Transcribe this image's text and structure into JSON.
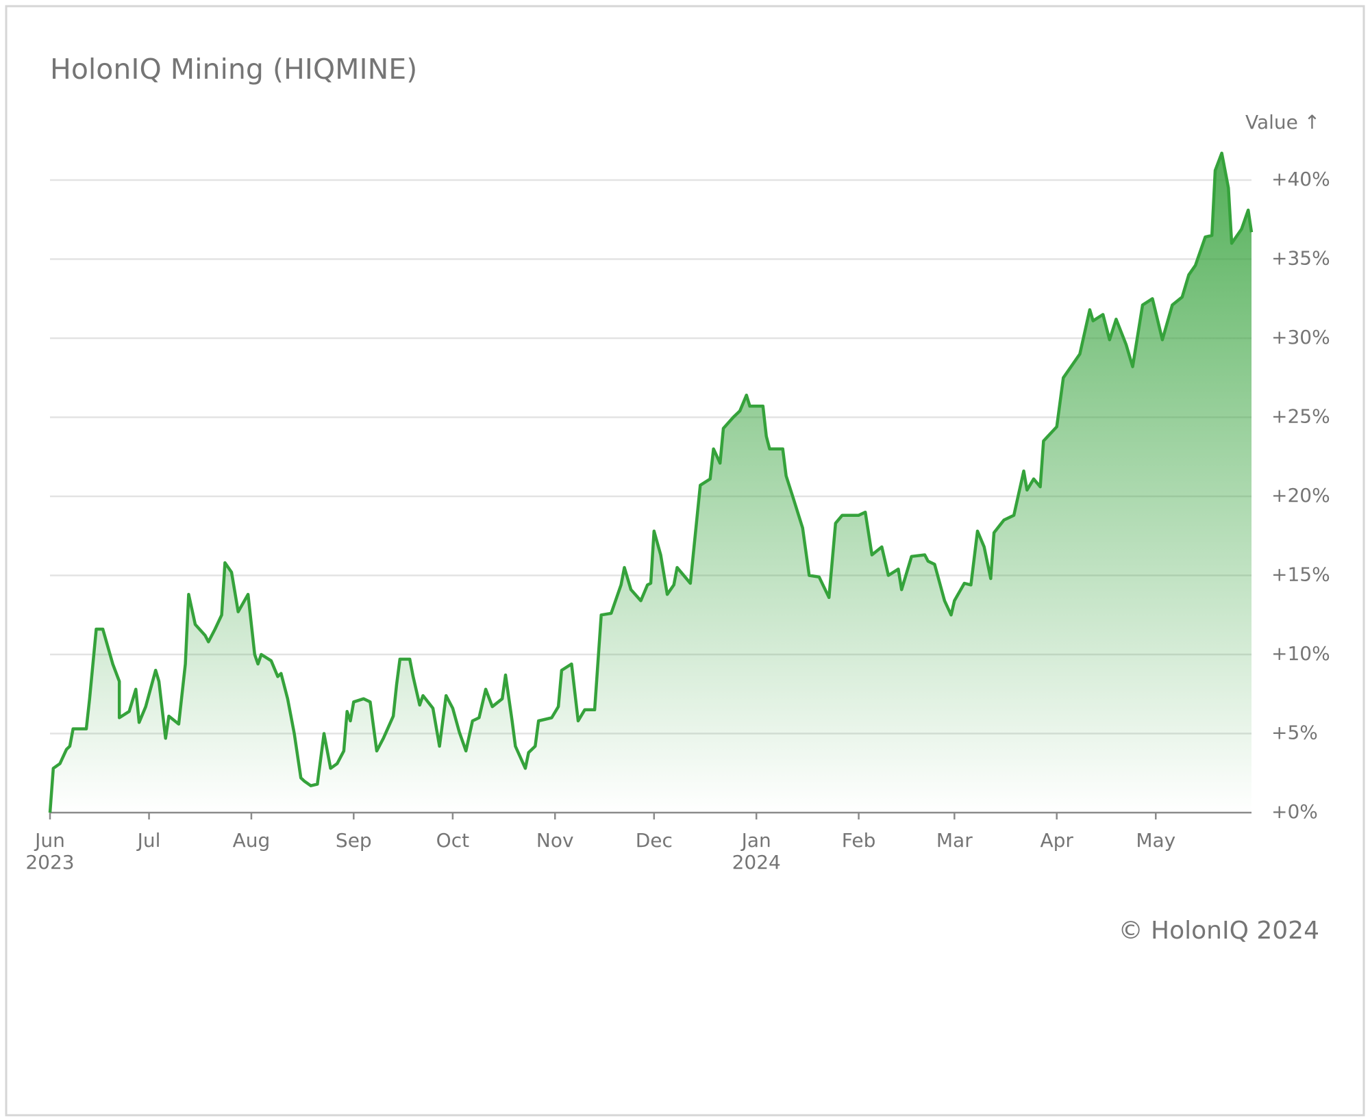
{
  "chart_data": {
    "type": "line",
    "title": "HolonIQ Mining (HIQMINE)",
    "y_label": "Value ↑",
    "footer": "© HolonIQ 2024",
    "x": [
      0,
      1,
      3,
      5,
      6,
      7,
      11,
      12,
      14,
      16,
      19,
      21,
      21,
      24,
      26,
      27,
      29,
      32,
      33,
      35,
      36,
      39,
      41,
      42,
      44,
      47,
      48,
      50,
      52,
      53,
      55,
      57,
      60,
      62,
      63,
      64,
      67,
      69,
      70,
      72,
      74,
      76,
      77,
      79,
      81,
      83,
      85,
      87,
      89,
      90,
      91,
      92,
      95,
      97,
      99,
      101,
      104,
      105,
      106,
      109,
      110,
      112,
      113,
      116,
      118,
      120,
      122,
      124,
      126,
      128,
      130,
      132,
      134,
      137,
      138,
      140,
      141,
      144,
      145,
      147,
      148,
      152,
      154,
      155,
      158,
      160,
      162,
      165,
      167,
      170,
      173,
      174,
      176,
      179,
      181,
      182,
      183,
      185,
      187,
      189,
      190,
      194,
      197,
      200,
      201,
      203,
      204,
      207,
      209,
      211,
      212,
      216,
      217,
      218,
      222,
      223,
      225,
      228,
      230,
      233,
      236,
      238,
      240,
      245,
      247,
      249,
      252,
      254,
      257,
      258,
      261,
      265,
      266,
      268,
      271,
      273,
      274,
      277,
      279,
      281,
      283,
      285,
      286,
      289,
      292,
      295,
      296,
      298,
      300,
      301,
      305,
      307,
      312,
      315,
      316,
      319,
      321,
      323,
      326,
      328,
      331,
      334,
      337,
      340,
      343,
      345,
      347,
      350,
      352,
      353,
      355,
      357,
      358,
      361,
      363,
      364
    ],
    "series": [
      {
        "name": "HIQMINE",
        "color": "#35a23b",
        "values": [
          0,
          2.8,
          3.1,
          4.0,
          4.2,
          5.3,
          5.3,
          7.2,
          11.6,
          11.6,
          9.4,
          8.3,
          6.0,
          6.4,
          7.8,
          5.7,
          6.7,
          9.0,
          8.3,
          4.7,
          6.1,
          5.6,
          9.4,
          13.8,
          11.9,
          11.2,
          10.8,
          11.6,
          12.5,
          15.8,
          15.2,
          12.7,
          13.8,
          10.0,
          9.4,
          10.0,
          9.6,
          8.6,
          8.8,
          7.2,
          5.0,
          2.2,
          2.0,
          1.7,
          1.8,
          5.0,
          2.8,
          3.1,
          3.9,
          6.4,
          5.8,
          7.0,
          7.2,
          7.0,
          3.9,
          4.7,
          6.1,
          8.1,
          9.7,
          9.7,
          8.6,
          6.8,
          7.4,
          6.6,
          4.2,
          7.4,
          6.6,
          5.1,
          3.9,
          5.8,
          6.0,
          7.8,
          6.7,
          7.2,
          8.7,
          5.8,
          4.2,
          2.8,
          3.8,
          4.2,
          5.8,
          6.0,
          6.7,
          9.0,
          9.4,
          5.8,
          6.5,
          6.5,
          12.5,
          12.6,
          14.4,
          15.5,
          14.1,
          13.4,
          14.4,
          14.5,
          17.8,
          16.3,
          13.8,
          14.4,
          15.5,
          14.5,
          20.7,
          21.1,
          23.0,
          22.1,
          24.3,
          25.0,
          25.4,
          26.4,
          25.7,
          25.7,
          23.8,
          23.0,
          23.0,
          21.3,
          20.0,
          18.0,
          15.0,
          14.9,
          13.6,
          18.3,
          18.8,
          18.8,
          19.0,
          16.3,
          16.8,
          15.0,
          15.4,
          14.1,
          16.2,
          16.3,
          15.9,
          15.7,
          13.4,
          12.5,
          13.4,
          14.5,
          14.4,
          17.8,
          16.8,
          14.8,
          17.7,
          18.5,
          18.8,
          21.6,
          20.4,
          21.1,
          20.6,
          23.5,
          24.4,
          27.5,
          29.0,
          31.8,
          31.1,
          31.5,
          29.9,
          31.2,
          29.6,
          28.2,
          32.1,
          32.5,
          29.9,
          32.1,
          32.6,
          34.0,
          34.6,
          36.4,
          36.5,
          40.6,
          41.7,
          39.5,
          36.0,
          36.9,
          38.1,
          36.7
        ]
      }
    ],
    "xlim": [
      0,
      364
    ],
    "xticks": [
      {
        "value": 0,
        "label": "Jun\n2023"
      },
      {
        "value": 30,
        "label": "Jul"
      },
      {
        "value": 61,
        "label": "Aug"
      },
      {
        "value": 92,
        "label": "Sep"
      },
      {
        "value": 122,
        "label": "Oct"
      },
      {
        "value": 153,
        "label": "Nov"
      },
      {
        "value": 183,
        "label": "Dec"
      },
      {
        "value": 214,
        "label": "Jan\n2024"
      },
      {
        "value": 245,
        "label": "Feb"
      },
      {
        "value": 274,
        "label": "Mar"
      },
      {
        "value": 305,
        "label": "Apr"
      },
      {
        "value": 335,
        "label": "May"
      }
    ],
    "ylim": [
      0,
      40
    ],
    "yticks": [
      {
        "value": 0,
        "label": "+0%"
      },
      {
        "value": 5,
        "label": "+5%"
      },
      {
        "value": 10,
        "label": "+10%"
      },
      {
        "value": 15,
        "label": "+15%"
      },
      {
        "value": 20,
        "label": "+20%"
      },
      {
        "value": 25,
        "label": "+25%"
      },
      {
        "value": 30,
        "label": "+30%"
      },
      {
        "value": 35,
        "label": "+35%"
      },
      {
        "value": 40,
        "label": "+40%"
      }
    ],
    "grid": true,
    "area": true
  }
}
